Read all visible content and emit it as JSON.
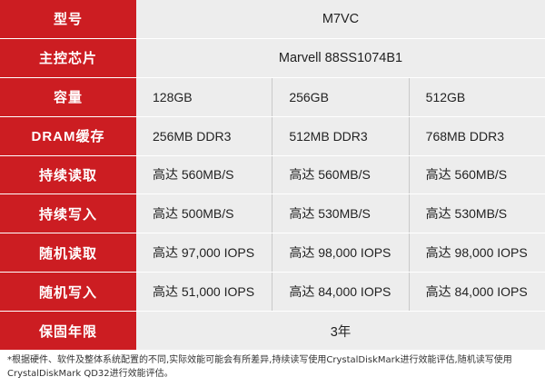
{
  "rows": [
    {
      "label": "型号",
      "values": [
        "M7VC"
      ]
    },
    {
      "label": "主控芯片",
      "values": [
        "Marvell 88SS1074B1"
      ]
    },
    {
      "label": "容量",
      "values": [
        "128GB",
        "256GB",
        "512GB"
      ]
    },
    {
      "label": "DRAM缓存",
      "values": [
        "256MB DDR3",
        "512MB DDR3",
        "768MB DDR3"
      ]
    },
    {
      "label": "持续读取",
      "values": [
        "高达 560MB/S",
        "高达 560MB/S",
        "高达 560MB/S"
      ]
    },
    {
      "label": "持续写入",
      "values": [
        "高达 500MB/S",
        "高达 530MB/S",
        "高达 530MB/S"
      ]
    },
    {
      "label": "随机读取",
      "values": [
        "高达 97,000 IOPS",
        "高达 98,000 IOPS",
        "高达 98,000 IOPS"
      ]
    },
    {
      "label": "随机写入",
      "values": [
        "高达 51,000 IOPS",
        "高达 84,000 IOPS",
        "高达 84,000 IOPS"
      ]
    },
    {
      "label": "保固年限",
      "values": [
        "3年"
      ]
    }
  ],
  "footnote": "*根据硬件、软件及整体系统配置的不同,实际效能可能会有所差异,持续读写使用CrystalDiskMark进行效能评估,随机读写使用CrystalDiskMark QD32进行效能评估。",
  "colors": {
    "label_bg": "#cc1d22",
    "cell_bg": "#ededed",
    "divider": "#c9c9c9"
  }
}
